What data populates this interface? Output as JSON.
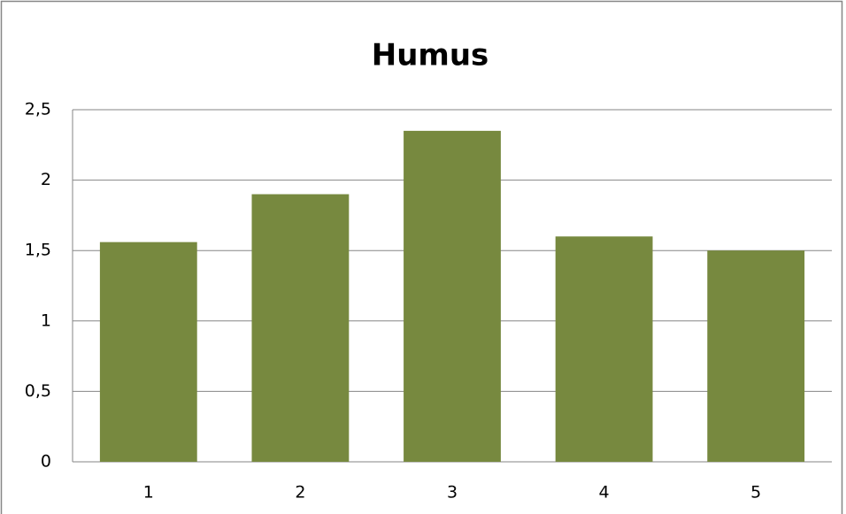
{
  "chart_data": {
    "type": "bar",
    "title": "Humus",
    "categories": [
      "1",
      "2",
      "3",
      "4",
      "5"
    ],
    "values": [
      1.56,
      1.9,
      2.35,
      1.6,
      1.5
    ],
    "color": "#77893f",
    "ylim": [
      0,
      2.5
    ],
    "yticks": [
      0,
      {
        "value": 0.5,
        "label": "0,5"
      },
      1,
      {
        "value": 1.5,
        "label": "1,5"
      },
      2,
      {
        "value": 2.5,
        "label": "2,5"
      }
    ],
    "grid": true
  }
}
